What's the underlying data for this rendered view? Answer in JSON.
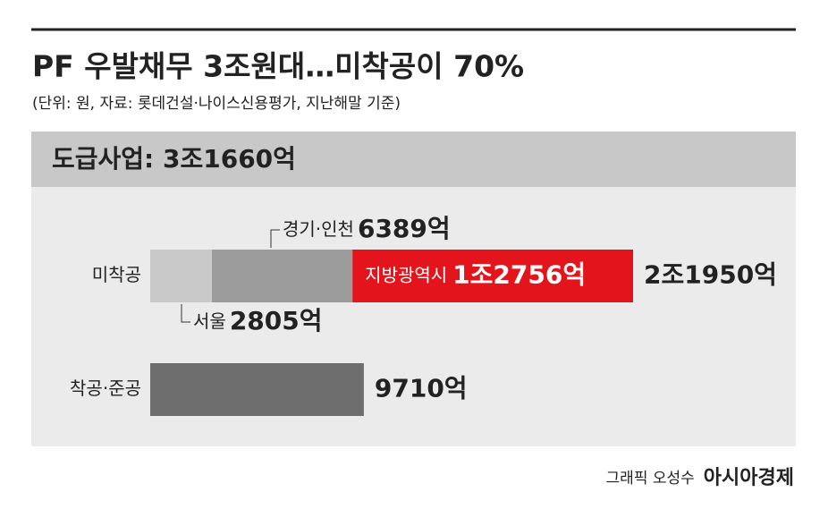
{
  "title": "PF 우발채무 3조원대…미착공이 70%",
  "subtitle": "(단위: 원, 자료: 롯데건설·나이스신용평가, 지난해말 기준)",
  "chart_data": {
    "type": "stacked-hbar",
    "header": "도급사업: 3조1660억",
    "bars": [
      {
        "category": "미착공",
        "segments": [
          {
            "name": "서울",
            "value": 2805,
            "value_label": "2805억",
            "color": "#c9c9c9"
          },
          {
            "name": "경기·인천",
            "value": 6389,
            "value_label": "6389억",
            "color": "#9c9c9c"
          },
          {
            "name": "지방광역시",
            "value": 12756,
            "value_label": "1조2756억",
            "color": "#e3141b"
          }
        ],
        "total": 21950,
        "total_label": "2조1950억"
      },
      {
        "category": "착공·준공",
        "segments": [
          {
            "value": 9710,
            "value_label": "9710억",
            "color": "#6e6e6e"
          }
        ]
      }
    ]
  },
  "footer": {
    "credit": "그래픽 오성수",
    "brand": "아시아경제"
  }
}
